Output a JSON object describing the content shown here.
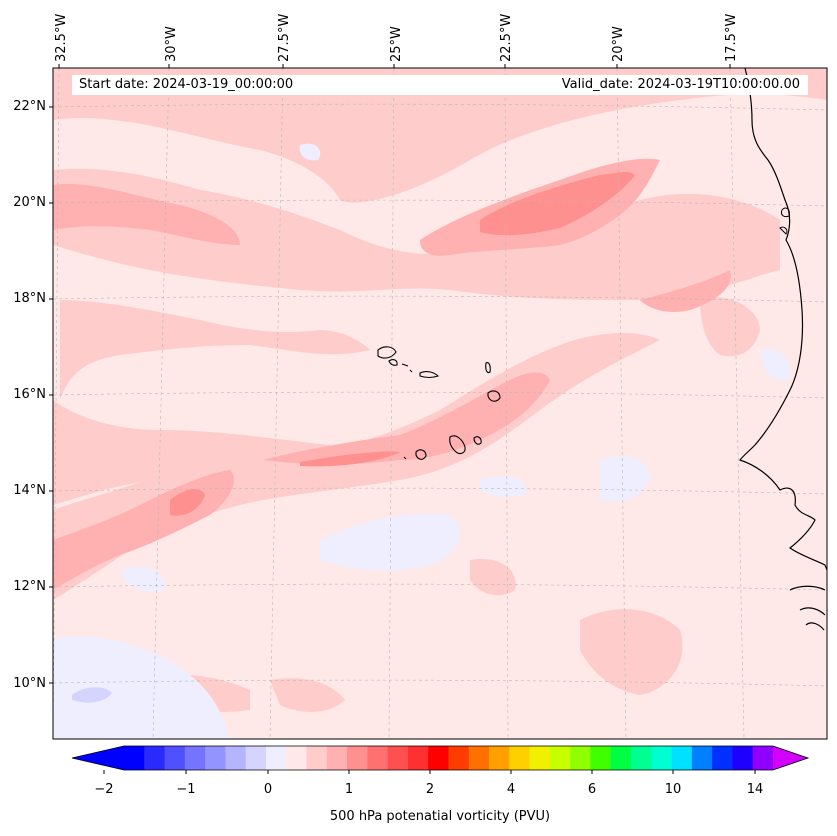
{
  "map": {
    "start_label": "Start date: 2024-03-19_00:00:00",
    "valid_label": "Valid_date: 2024-03-19T10:00:00.00",
    "lon_labels": [
      "32.5°W",
      "30°W",
      "27.5°W",
      "25°W",
      "22.5°W",
      "20°W",
      "17.5°W"
    ],
    "lat_labels": [
      "22°N",
      "20°N",
      "18°N",
      "16°N",
      "14°N",
      "12°N",
      "10°N"
    ],
    "region": "Cape Verde / West African coast",
    "field": "500 hPa potential vorticity"
  },
  "colorbar": {
    "title": "500 hPa potenatial vorticity (PVU)",
    "tick_labels": [
      "−2",
      "−1",
      "0",
      "1",
      "2",
      "4",
      "6",
      "10",
      "14"
    ],
    "colors": [
      "#0000ff",
      "#2a2aff",
      "#5050ff",
      "#7474ff",
      "#9494ff",
      "#b4b4ff",
      "#d4d4ff",
      "#eeeeff",
      "#ffe8e8",
      "#ffcccc",
      "#ffb0b0",
      "#ff9090",
      "#ff7070",
      "#ff5050",
      "#ff3030",
      "#ff0000",
      "#ff3c00",
      "#ff7000",
      "#ffa000",
      "#ffd000",
      "#f0f000",
      "#c8ff00",
      "#90ff00",
      "#40ff00",
      "#00ff40",
      "#00ff90",
      "#00ffd0",
      "#00e0ff",
      "#0080ff",
      "#0030ff",
      "#1e00ff",
      "#9000ff"
    ],
    "extend_low_color": "#0000ff",
    "extend_high_color": "#d400ff"
  }
}
